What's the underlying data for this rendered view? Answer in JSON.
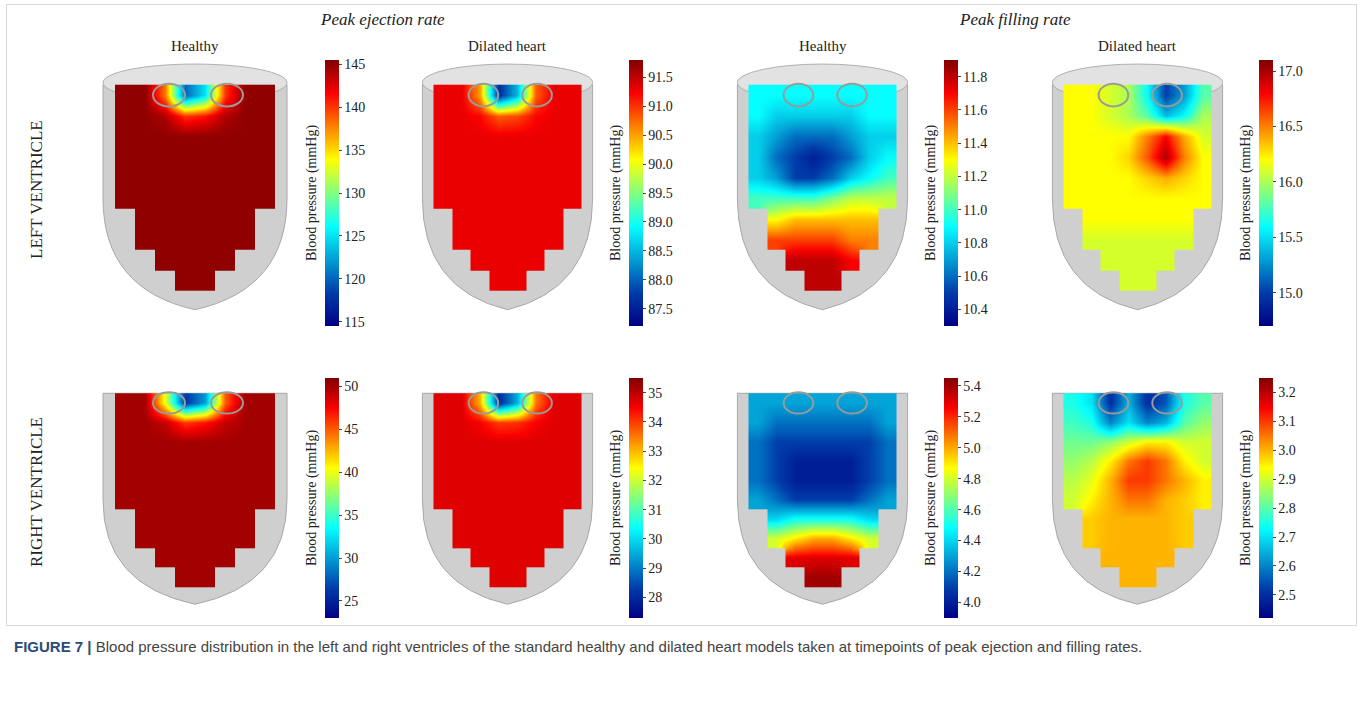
{
  "figure": {
    "label": "FIGURE 7 |",
    "caption": "Blood pressure distribution in the left and right ventricles of the standard healthy and dilated heart models taken at timepoints of peak ejection and filling rates.",
    "groups": [
      {
        "title": "Peak ejection rate",
        "columns": [
          "Healthy",
          "Dilated heart"
        ]
      },
      {
        "title": "Peak filling rate",
        "columns": [
          "Healthy",
          "Dilated heart"
        ]
      }
    ],
    "rows": [
      "LEFT VENTRICLE",
      "RIGHT VENTRICLE"
    ],
    "colorbar_label": "Blood pressure (mmHg)"
  },
  "chart_data": [
    {
      "type": "heatmap",
      "tick_labels": false,
      "zlim": [
        114.5,
        145.5
      ],
      "zticks": [
        115,
        120,
        125,
        130,
        135,
        140,
        145
      ],
      "cells": [
        [
          145,
          145,
          138,
          120,
          125,
          140,
          145,
          145
        ],
        [
          145,
          145,
          144,
          140,
          141,
          144,
          145,
          145
        ],
        [
          145,
          145,
          145,
          145,
          145,
          145,
          145,
          145
        ],
        [
          145,
          145,
          145,
          145,
          145,
          145,
          145,
          145
        ],
        [
          145,
          145,
          145,
          145,
          145,
          145,
          145,
          145
        ],
        [
          145,
          145,
          145,
          145,
          145,
          145,
          145,
          145
        ],
        [
          null,
          145,
          145,
          145,
          145,
          145,
          145,
          null
        ],
        [
          null,
          145,
          145,
          145,
          145,
          145,
          145,
          null
        ],
        [
          null,
          null,
          145,
          145,
          145,
          145,
          null,
          null
        ],
        [
          null,
          null,
          null,
          145,
          145,
          null,
          null,
          null
        ]
      ]
    },
    {
      "type": "heatmap",
      "tick_labels": false,
      "zlim": [
        87.2,
        91.8
      ],
      "zticks": [
        87.5,
        {
          "value": 88,
          "label": "88.0"
        },
        88.5,
        {
          "value": 89,
          "label": "89.0"
        },
        89.5,
        {
          "value": 90,
          "label": "90.0"
        },
        90.5,
        {
          "value": 91,
          "label": "91.0"
        },
        91.5
      ],
      "cells": [
        [
          91.3,
          91.3,
          90.5,
          87.6,
          88.5,
          90.8,
          91.3,
          91.3
        ],
        [
          91.3,
          91.3,
          91.2,
          90.8,
          90.9,
          91.2,
          91.3,
          91.3
        ],
        [
          91.3,
          91.3,
          91.3,
          91.3,
          91.3,
          91.3,
          91.3,
          91.3
        ],
        [
          91.3,
          91.3,
          91.3,
          91.3,
          91.3,
          91.3,
          91.3,
          91.3
        ],
        [
          91.3,
          91.3,
          91.3,
          91.3,
          91.3,
          91.3,
          91.3,
          91.3
        ],
        [
          91.3,
          91.3,
          91.3,
          91.3,
          91.3,
          91.3,
          91.3,
          91.3
        ],
        [
          null,
          91.3,
          91.3,
          91.3,
          91.3,
          91.3,
          91.3,
          null
        ],
        [
          null,
          91.3,
          91.3,
          91.3,
          91.3,
          91.3,
          91.3,
          null
        ],
        [
          null,
          null,
          91.3,
          91.3,
          91.3,
          91.3,
          null,
          null
        ],
        [
          null,
          null,
          null,
          91.3,
          91.3,
          null,
          null,
          null
        ]
      ]
    },
    {
      "type": "heatmap",
      "tick_labels": false,
      "zlim": [
        10.3,
        11.9
      ],
      "zticks": [
        10.4,
        10.6,
        10.8,
        {
          "value": 11,
          "label": "11.0"
        },
        11.2,
        11.4,
        11.6,
        11.8
      ],
      "cells": [
        [
          10.9,
          10.9,
          10.9,
          10.9,
          10.9,
          10.9,
          10.9,
          10.9
        ],
        [
          10.9,
          10.8,
          10.8,
          10.8,
          10.8,
          10.8,
          10.9,
          10.9
        ],
        [
          10.8,
          10.7,
          10.6,
          10.6,
          10.6,
          10.7,
          10.8,
          10.8
        ],
        [
          10.8,
          10.6,
          10.5,
          10.4,
          10.5,
          10.6,
          10.8,
          10.9
        ],
        [
          10.8,
          10.7,
          10.5,
          10.5,
          10.6,
          10.8,
          10.9,
          11.0
        ],
        [
          11.0,
          11.0,
          11.0,
          11.0,
          11.1,
          11.2,
          11.2,
          11.2
        ],
        [
          null,
          11.3,
          11.4,
          11.4,
          11.4,
          11.4,
          11.4,
          null
        ],
        [
          null,
          11.6,
          11.6,
          11.6,
          11.6,
          11.5,
          11.5,
          null
        ],
        [
          null,
          null,
          11.8,
          11.8,
          11.8,
          11.7,
          null,
          null
        ],
        [
          null,
          null,
          null,
          11.8,
          11.8,
          null,
          null,
          null
        ]
      ]
    },
    {
      "type": "heatmap",
      "tick_labels": false,
      "zlim": [
        14.7,
        17.1
      ],
      "zticks": [
        {
          "value": 15,
          "label": "15.0"
        },
        15.5,
        {
          "value": 16,
          "label": "16.0"
        },
        16.5,
        {
          "value": 17,
          "label": "17.0"
        }
      ],
      "cells": [
        [
          16.2,
          16.2,
          16.1,
          16.0,
          15.6,
          15.0,
          15.3,
          15.8
        ],
        [
          16.2,
          16.2,
          16.1,
          16.0,
          15.8,
          15.4,
          15.6,
          16.0
        ],
        [
          16.2,
          16.2,
          16.2,
          16.2,
          16.5,
          16.8,
          16.4,
          16.1
        ],
        [
          16.2,
          16.2,
          16.2,
          16.3,
          16.6,
          17.0,
          16.5,
          16.2
        ],
        [
          16.2,
          16.2,
          16.2,
          16.2,
          16.3,
          16.4,
          16.3,
          16.2
        ],
        [
          16.2,
          16.2,
          16.2,
          16.2,
          16.2,
          16.2,
          16.2,
          16.2
        ],
        [
          null,
          16.2,
          16.2,
          16.2,
          16.2,
          16.2,
          16.2,
          null
        ],
        [
          null,
          16.1,
          16.1,
          16.1,
          16.1,
          16.1,
          16.1,
          null
        ],
        [
          null,
          null,
          16.1,
          16.1,
          16.1,
          16.1,
          null,
          null
        ],
        [
          null,
          null,
          null,
          16.1,
          16.1,
          null,
          null,
          null
        ]
      ]
    },
    {
      "type": "heatmap",
      "tick_labels": false,
      "zlim": [
        23,
        51
      ],
      "zticks": [
        25,
        30,
        35,
        40,
        45,
        50
      ],
      "cells": [
        [
          50,
          50,
          40,
          26,
          30,
          45,
          50,
          50
        ],
        [
          50,
          50,
          49,
          46,
          47,
          49,
          50,
          50
        ],
        [
          50,
          50,
          50,
          50,
          50,
          50,
          50,
          50
        ],
        [
          50,
          50,
          50,
          50,
          50,
          50,
          50,
          50
        ],
        [
          50,
          50,
          50,
          50,
          50,
          50,
          50,
          50
        ],
        [
          50,
          50,
          50,
          50,
          50,
          50,
          50,
          50
        ],
        [
          null,
          50,
          50,
          50,
          50,
          50,
          50,
          null
        ],
        [
          null,
          50,
          50,
          50,
          50,
          50,
          50,
          null
        ],
        [
          null,
          null,
          50,
          50,
          50,
          50,
          null,
          null
        ],
        [
          null,
          null,
          null,
          50,
          50,
          null,
          null,
          null
        ]
      ]
    },
    {
      "type": "heatmap",
      "tick_labels": false,
      "zlim": [
        27.3,
        35.5
      ],
      "zticks": [
        28,
        29,
        30,
        31,
        32,
        33,
        34,
        35
      ],
      "cells": [
        [
          34.7,
          34.7,
          33,
          28,
          29.5,
          33.5,
          34.7,
          34.7
        ],
        [
          34.7,
          34.7,
          34.5,
          34,
          34.1,
          34.5,
          34.7,
          34.7
        ],
        [
          34.7,
          34.7,
          34.7,
          34.7,
          34.7,
          34.7,
          34.7,
          34.7
        ],
        [
          34.7,
          34.7,
          34.7,
          34.7,
          34.7,
          34.7,
          34.7,
          34.7
        ],
        [
          34.7,
          34.7,
          34.7,
          34.7,
          34.7,
          34.7,
          34.7,
          34.7
        ],
        [
          34.7,
          34.7,
          34.7,
          34.7,
          34.7,
          34.7,
          34.7,
          34.7
        ],
        [
          null,
          34.7,
          34.7,
          34.7,
          34.7,
          34.7,
          34.7,
          null
        ],
        [
          null,
          34.7,
          34.7,
          34.7,
          34.7,
          34.7,
          34.7,
          null
        ],
        [
          null,
          null,
          34.7,
          34.7,
          34.7,
          34.7,
          null,
          null
        ],
        [
          null,
          null,
          null,
          34.7,
          34.7,
          null,
          null,
          null
        ]
      ]
    },
    {
      "type": "heatmap",
      "tick_labels": false,
      "zlim": [
        3.9,
        5.45
      ],
      "zticks": [
        {
          "value": 4,
          "label": "4.0"
        },
        4.2,
        4.4,
        4.6,
        4.8,
        {
          "value": 5,
          "label": "5.0"
        },
        5.2,
        5.4
      ],
      "cells": [
        [
          4.3,
          4.3,
          4.3,
          4.3,
          4.3,
          4.3,
          4.3,
          4.3
        ],
        [
          4.3,
          4.2,
          4.2,
          4.2,
          4.2,
          4.2,
          4.2,
          4.3
        ],
        [
          4.2,
          4.1,
          4.1,
          4.1,
          4.1,
          4.1,
          4.1,
          4.2
        ],
        [
          4.2,
          4.1,
          4.0,
          4.0,
          4.0,
          4.0,
          4.1,
          4.2
        ],
        [
          4.2,
          4.1,
          4.0,
          4.0,
          4.0,
          4.0,
          4.1,
          4.2
        ],
        [
          4.3,
          4.2,
          4.1,
          4.1,
          4.1,
          4.1,
          4.2,
          4.3
        ],
        [
          null,
          4.4,
          4.5,
          4.5,
          4.5,
          4.5,
          4.4,
          null
        ],
        [
          null,
          4.8,
          4.9,
          5.0,
          5.0,
          4.9,
          4.8,
          null
        ],
        [
          null,
          null,
          5.3,
          5.3,
          5.3,
          5.3,
          null,
          null
        ],
        [
          null,
          null,
          null,
          5.4,
          5.4,
          null,
          null,
          null
        ]
      ]
    },
    {
      "type": "heatmap",
      "tick_labels": false,
      "zlim": [
        2.42,
        3.25
      ],
      "zticks": [
        2.5,
        2.6,
        2.7,
        2.8,
        2.9,
        {
          "value": 3,
          "label": "3.0"
        },
        3.1,
        3.2
      ],
      "cells": [
        [
          2.75,
          2.7,
          2.5,
          2.65,
          2.5,
          2.55,
          2.75,
          2.8
        ],
        [
          2.78,
          2.75,
          2.6,
          2.7,
          2.6,
          2.65,
          2.8,
          2.85
        ],
        [
          2.82,
          2.82,
          2.85,
          2.9,
          2.95,
          2.95,
          2.9,
          2.9
        ],
        [
          2.85,
          2.88,
          2.95,
          3.05,
          3.1,
          3.05,
          2.95,
          2.9
        ],
        [
          2.88,
          2.92,
          3.0,
          3.1,
          3.1,
          3.05,
          3.0,
          2.95
        ],
        [
          2.9,
          2.95,
          3.0,
          3.05,
          3.05,
          3.0,
          2.98,
          2.95
        ],
        [
          null,
          2.98,
          3.0,
          3.0,
          3.0,
          3.0,
          2.98,
          null
        ],
        [
          null,
          2.98,
          3.0,
          3.0,
          3.0,
          3.0,
          2.98,
          null
        ],
        [
          null,
          null,
          3.0,
          3.0,
          3.0,
          3.0,
          null,
          null
        ],
        [
          null,
          null,
          null,
          3.0,
          3.0,
          null,
          null,
          null
        ]
      ]
    }
  ]
}
